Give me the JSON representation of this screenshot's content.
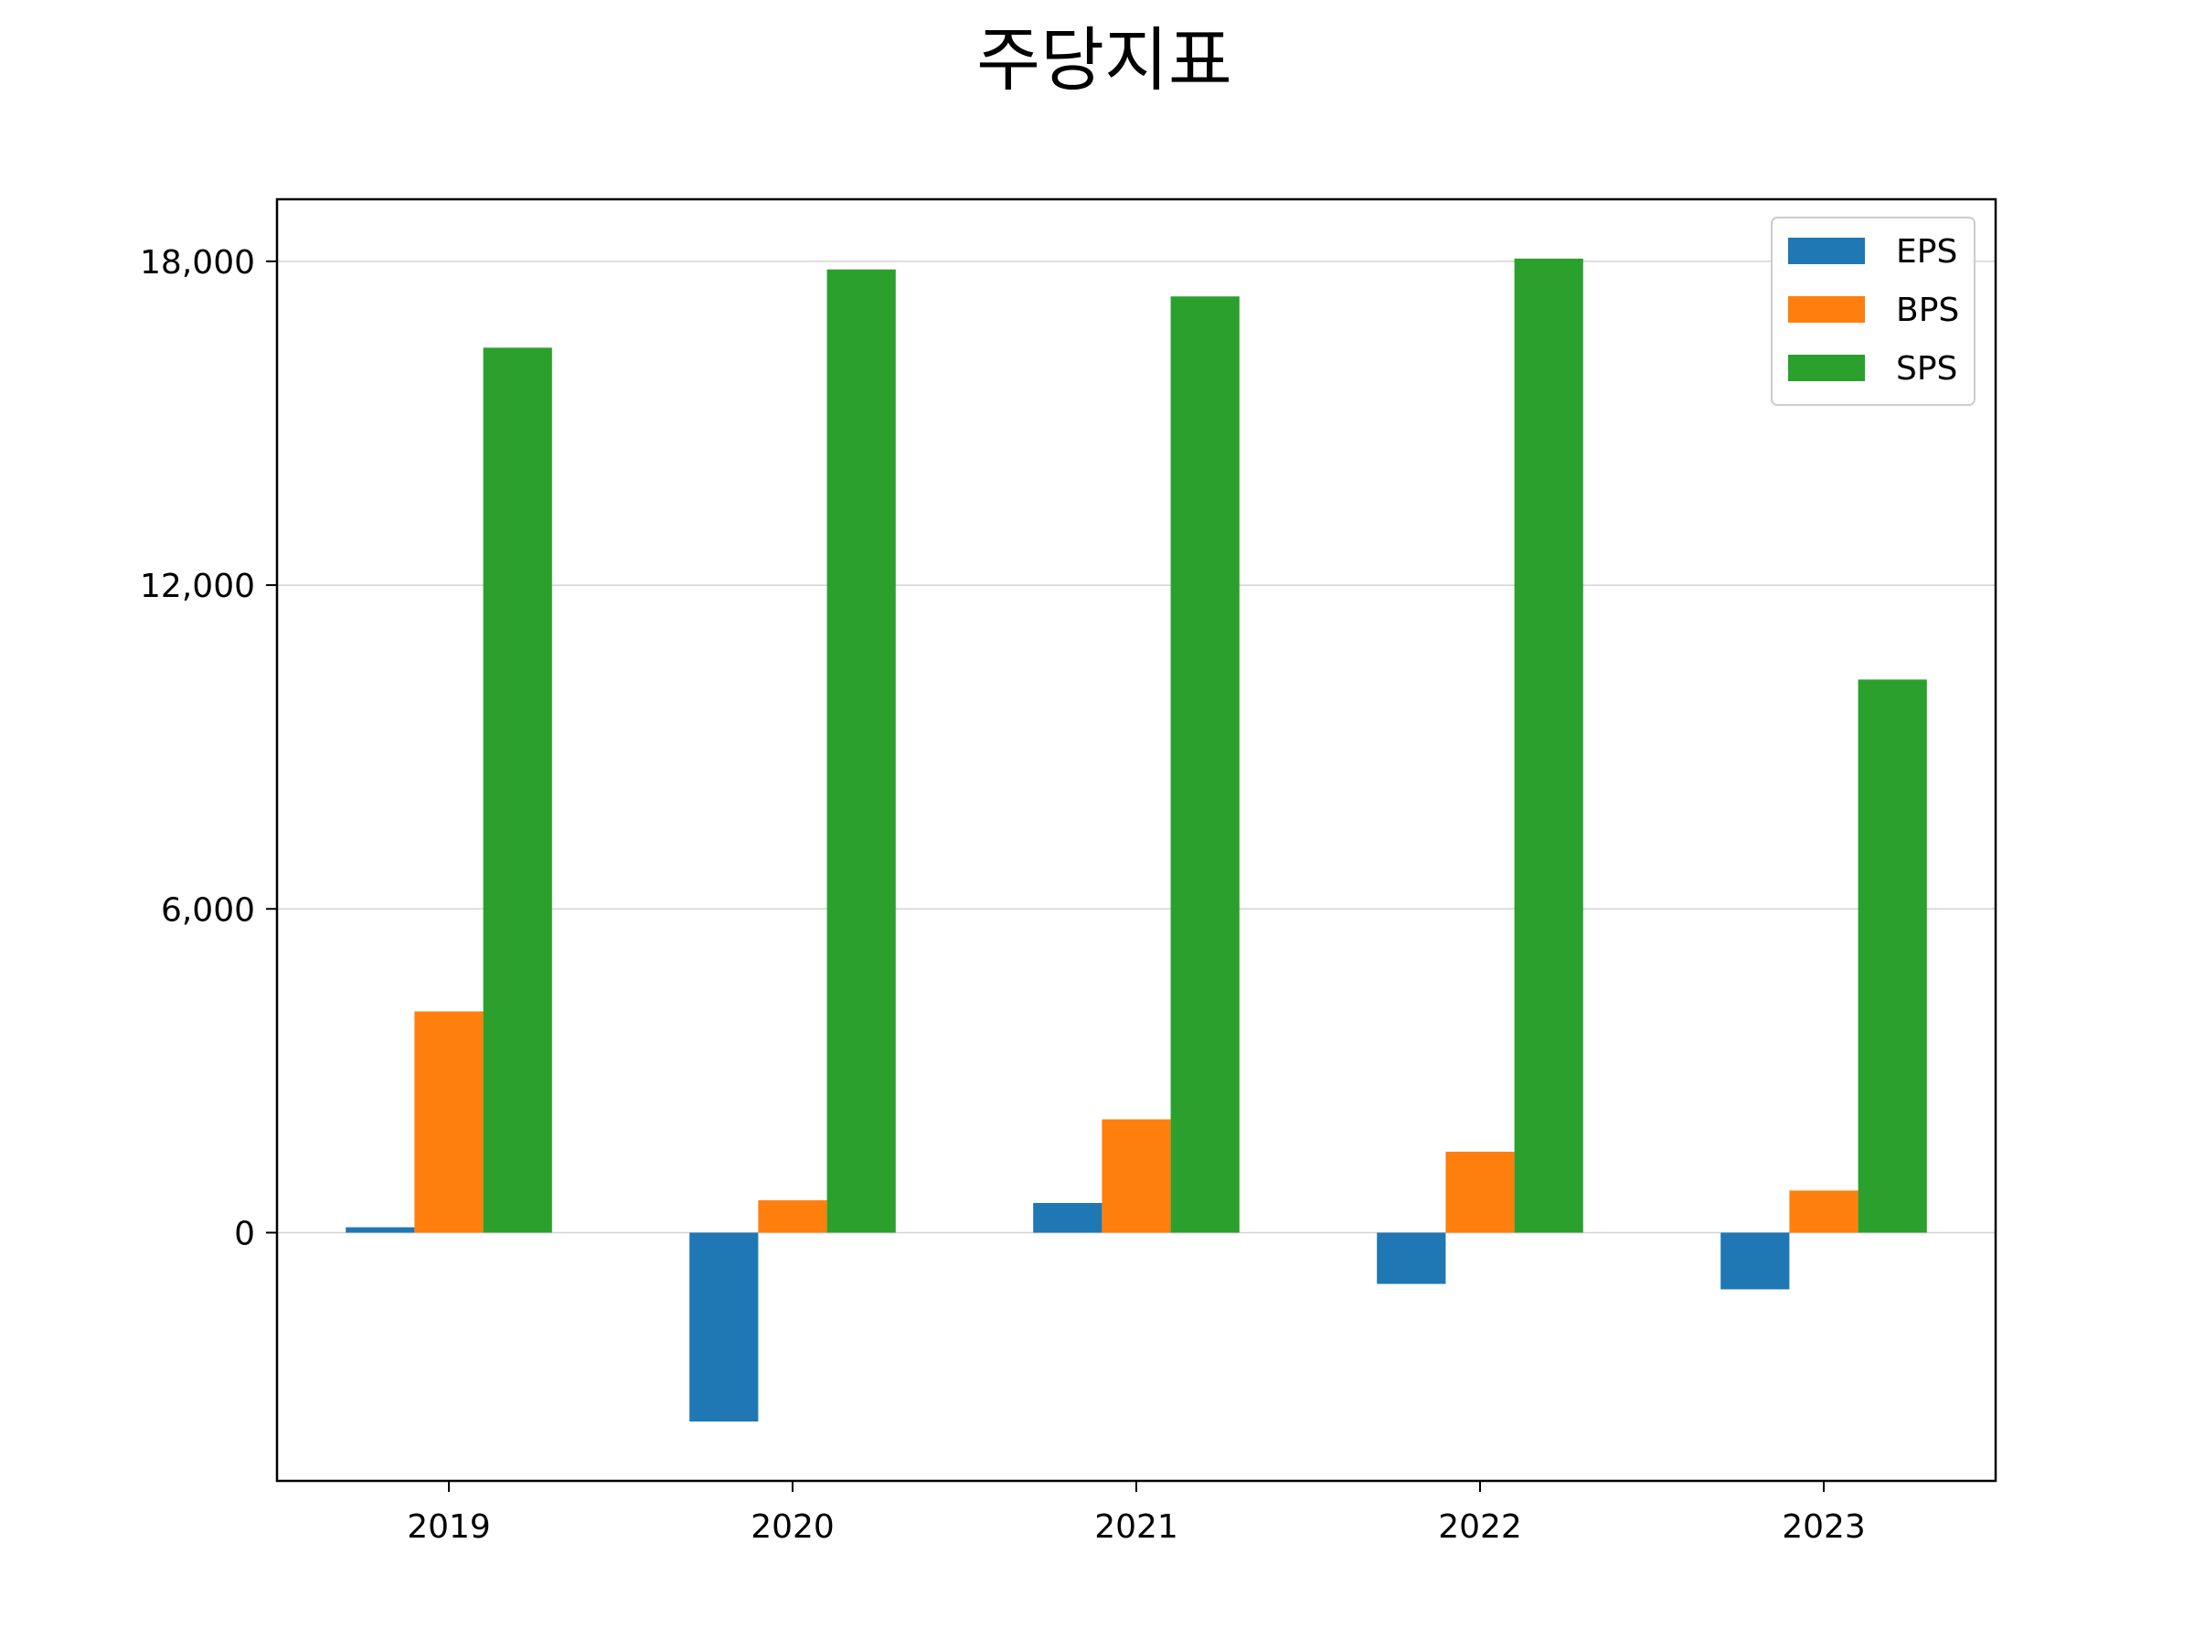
{
  "chart_data": {
    "type": "bar",
    "title": "주당지표",
    "xlabel": "",
    "ylabel": "",
    "categories": [
      "2019",
      "2020",
      "2021",
      "2022",
      "2023"
    ],
    "series": [
      {
        "name": "EPS",
        "color": "#1f77b4",
        "values": [
          100,
          -3500,
          550,
          -950,
          -1050
        ]
      },
      {
        "name": "BPS",
        "color": "#ff7f0e",
        "values": [
          4100,
          600,
          2100,
          1500,
          780
        ]
      },
      {
        "name": "SPS",
        "color": "#2ca02c",
        "values": [
          16400,
          17850,
          17350,
          18050,
          10250
        ]
      }
    ],
    "ylim": [
      -4600,
      19150
    ],
    "yticks": [
      0,
      6000,
      12000,
      18000
    ],
    "ytick_labels": [
      "0",
      "6,000",
      "12,000",
      "18,000"
    ],
    "grid": "y",
    "legend_position": "top-right"
  }
}
